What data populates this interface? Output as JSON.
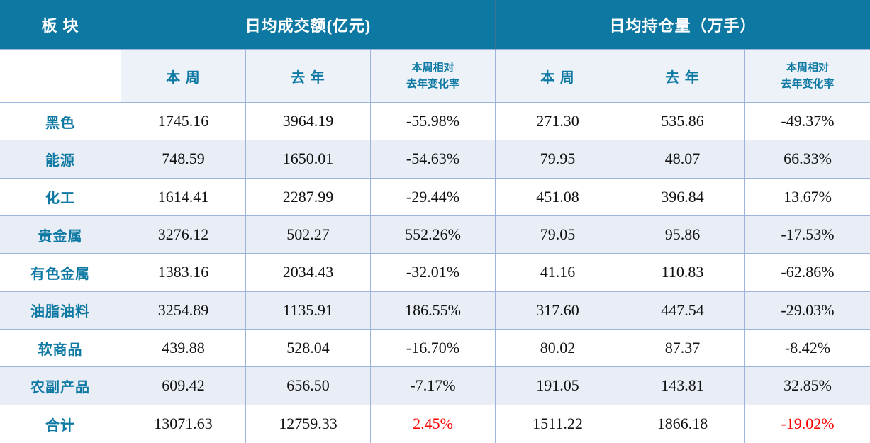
{
  "colors": {
    "header_bg": "#0d79a3",
    "header_text": "#ffffff",
    "accent_text": "#0d79a3",
    "subheader_bg": "#edf1f8",
    "stripe_bg": "#e9eef6",
    "border": "#9db3d9",
    "header_divider": "#3f7394",
    "value_text": "#111111",
    "highlight_red": "#fe0000"
  },
  "chart_data": {
    "type": "table",
    "title": "",
    "corner_header": "板 块",
    "column_groups": [
      {
        "label": "日均成交额(亿元)"
      },
      {
        "label": "日均持仓量（万手）"
      }
    ],
    "subheaders": {
      "this_week": "本 周",
      "last_year": "去 年",
      "change_line1": "本周相对",
      "change_line2": "去年变化率"
    },
    "rows": [
      {
        "sector": "黑色",
        "vals": [
          "1745.16",
          "3964.19",
          "-55.98%",
          "271.30",
          "535.86",
          "-49.37%"
        ]
      },
      {
        "sector": "能源",
        "vals": [
          "748.59",
          "1650.01",
          "-54.63%",
          "79.95",
          "48.07",
          "66.33%"
        ]
      },
      {
        "sector": "化工",
        "vals": [
          "1614.41",
          "2287.99",
          "-29.44%",
          "451.08",
          "396.84",
          "13.67%"
        ]
      },
      {
        "sector": "贵金属",
        "vals": [
          "3276.12",
          "502.27",
          "552.26%",
          "79.05",
          "95.86",
          "-17.53%"
        ]
      },
      {
        "sector": "有色金属",
        "vals": [
          "1383.16",
          "2034.43",
          "-32.01%",
          "41.16",
          "110.83",
          "-62.86%"
        ]
      },
      {
        "sector": "油脂油料",
        "vals": [
          "3254.89",
          "1135.91",
          "186.55%",
          "317.60",
          "447.54",
          "-29.03%"
        ]
      },
      {
        "sector": "软商品",
        "vals": [
          "439.88",
          "528.04",
          "-16.70%",
          "80.02",
          "87.37",
          "-8.42%"
        ]
      },
      {
        "sector": "农副产品",
        "vals": [
          "609.42",
          "656.50",
          "-7.17%",
          "191.05",
          "143.81",
          "32.85%"
        ]
      }
    ],
    "total": {
      "sector": "合计",
      "vals": [
        "13071.63",
        "12759.33",
        "2.45%",
        "1511.22",
        "1866.18",
        "-19.02%"
      ]
    }
  }
}
